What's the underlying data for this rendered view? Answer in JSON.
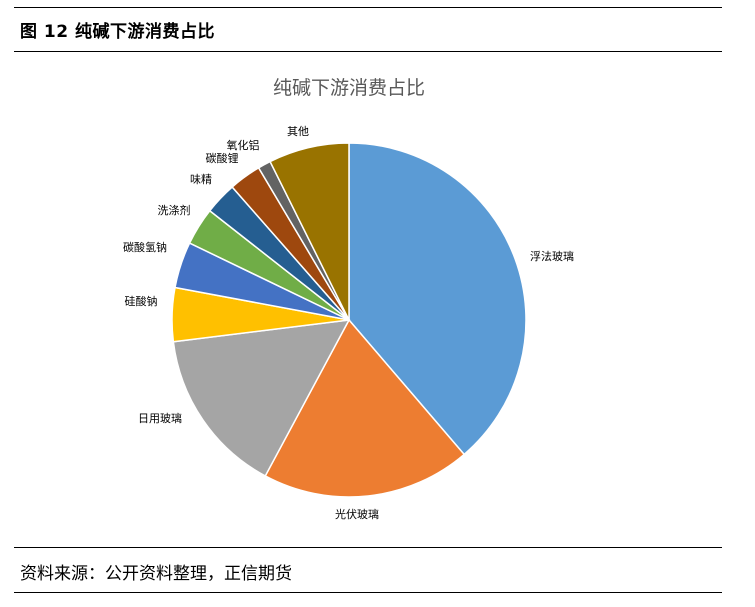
{
  "figure": {
    "title": "图 12  纯碱下游消费占比",
    "source": "资料来源：公开资料整理，正信期货"
  },
  "chart_data": {
    "type": "pie",
    "title": "纯碱下游消费占比",
    "start_angle_deg": 0,
    "direction": "clockwise",
    "slices": [
      {
        "label": "浮法玻璃",
        "value": 39.5,
        "color": "#5B9BD5"
      },
      {
        "label": "光伏玻璃",
        "value": 19.5,
        "color": "#ED7D31"
      },
      {
        "label": "日用玻璃",
        "value": 15.5,
        "color": "#A5A5A5"
      },
      {
        "label": "硅酸钠",
        "value": 5.0,
        "color": "#FFC000"
      },
      {
        "label": "碳酸氢钠",
        "value": 4.3,
        "color": "#4472C4"
      },
      {
        "label": "洗涤剂",
        "value": 3.5,
        "color": "#70AD47"
      },
      {
        "label": "味精",
        "value": 3.0,
        "color": "#255E91"
      },
      {
        "label": "碳酸锂",
        "value": 3.0,
        "color": "#9E480E"
      },
      {
        "label": "氧化铝",
        "value": 1.2,
        "color": "#636363"
      },
      {
        "label": "其他",
        "value": 7.5,
        "color": "#997300"
      }
    ]
  }
}
